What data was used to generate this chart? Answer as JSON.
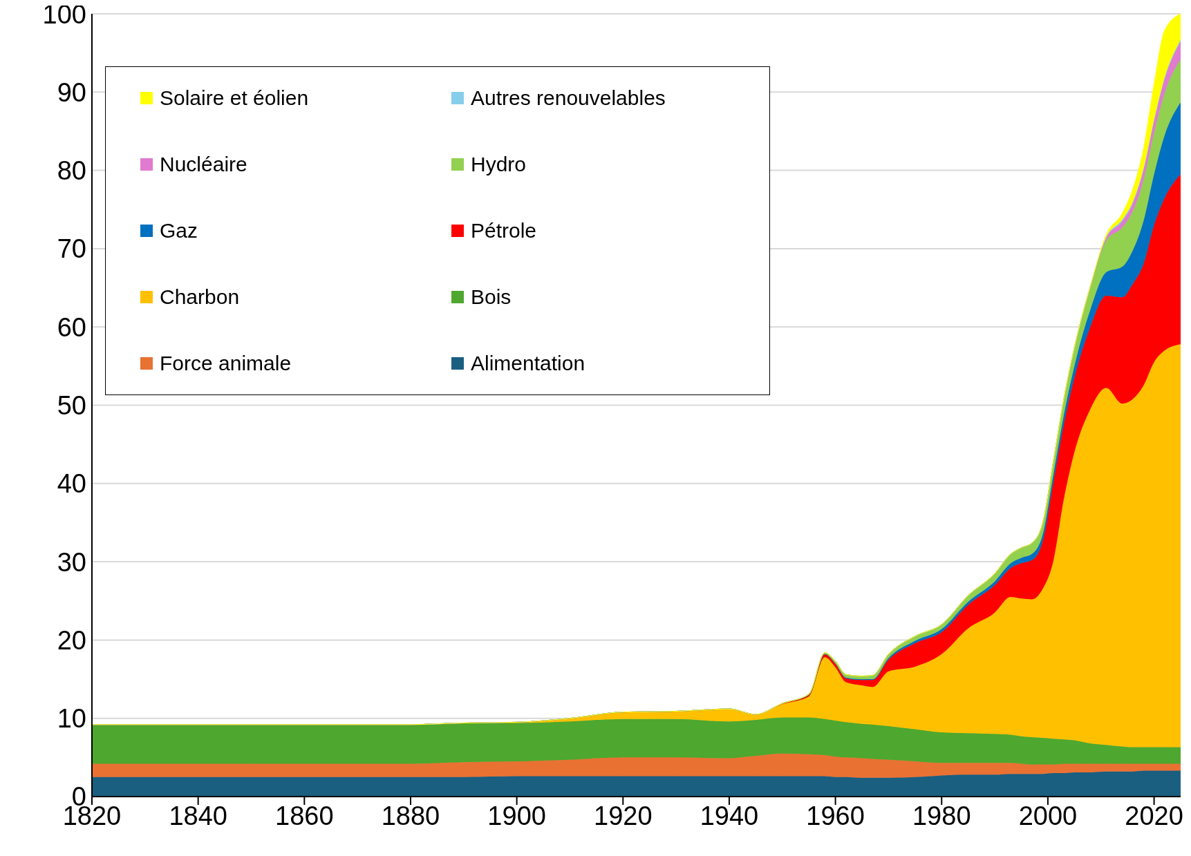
{
  "chart_data": {
    "type": "area",
    "stacked": true,
    "x": [
      1820,
      1850,
      1880,
      1890,
      1900,
      1910,
      1920,
      1930,
      1940,
      1945,
      1950,
      1955,
      1958,
      1960,
      1962,
      1965,
      1967,
      1970,
      1975,
      1980,
      1985,
      1990,
      1993,
      1995,
      1997,
      1999,
      2001,
      2003,
      2005,
      2008,
      2011,
      2014,
      2016,
      2018,
      2020,
      2022,
      2025
    ],
    "series": [
      {
        "name": "Alimentation",
        "color": "#1a5e80",
        "values": [
          2.5,
          2.5,
          2.5,
          2.5,
          2.6,
          2.6,
          2.6,
          2.6,
          2.6,
          2.6,
          2.6,
          2.6,
          2.6,
          2.5,
          2.5,
          2.4,
          2.4,
          2.4,
          2.5,
          2.7,
          2.8,
          2.8,
          2.9,
          2.9,
          2.9,
          2.9,
          3.0,
          3.0,
          3.1,
          3.1,
          3.2,
          3.2,
          3.2,
          3.3,
          3.3,
          3.3,
          3.3
        ]
      },
      {
        "name": "Force animale",
        "color": "#e97132",
        "values": [
          1.7,
          1.7,
          1.7,
          1.9,
          1.9,
          2.1,
          2.4,
          2.4,
          2.3,
          2.6,
          2.9,
          2.8,
          2.7,
          2.6,
          2.5,
          2.5,
          2.4,
          2.3,
          2.0,
          1.6,
          1.5,
          1.5,
          1.4,
          1.3,
          1.2,
          1.2,
          1.1,
          1.2,
          1.1,
          1.1,
          1.0,
          1.0,
          1.0,
          0.9,
          0.9,
          0.9,
          0.9
        ]
      },
      {
        "name": "Bois",
        "color": "#4ea72e",
        "values": [
          5.0,
          5.0,
          5.0,
          5.0,
          4.9,
          4.9,
          4.9,
          4.9,
          4.7,
          4.6,
          4.6,
          4.7,
          4.6,
          4.6,
          4.5,
          4.4,
          4.4,
          4.3,
          4.1,
          3.9,
          3.8,
          3.7,
          3.6,
          3.5,
          3.5,
          3.4,
          3.3,
          3.1,
          3.0,
          2.6,
          2.4,
          2.2,
          2.1,
          2.1,
          2.1,
          2.1,
          2.1
        ]
      },
      {
        "name": "Charbon",
        "color": "#ffc000",
        "values": [
          0,
          0,
          0,
          0,
          0.1,
          0.4,
          0.9,
          1.0,
          1.6,
          0.7,
          1.7,
          2.7,
          7.9,
          6.8,
          5.1,
          4.9,
          4.8,
          7.0,
          8.0,
          10.0,
          13.4,
          15.5,
          17.6,
          17.6,
          17.6,
          19.0,
          22.6,
          30.7,
          36.8,
          42.7,
          45.6,
          43.8,
          44.5,
          46.2,
          49.2,
          50.7,
          51.5
        ]
      },
      {
        "name": "Pétrole",
        "color": "#ff0000",
        "values": [
          0,
          0,
          0,
          0,
          0,
          0,
          0,
          0,
          0,
          0,
          0.1,
          0.2,
          0.4,
          0.5,
          0.5,
          0.7,
          0.9,
          1.5,
          3.0,
          2.8,
          3.0,
          3.5,
          3.7,
          4.5,
          5.0,
          6.0,
          10.0,
          9.5,
          9.5,
          10.5,
          11.8,
          13.6,
          14.7,
          15.5,
          17.5,
          19.5,
          21.7
        ]
      },
      {
        "name": "Gaz",
        "color": "#0070c0",
        "values": [
          0,
          0,
          0,
          0,
          0,
          0,
          0,
          0,
          0,
          0,
          0,
          0,
          0,
          0,
          0.1,
          0.1,
          0.1,
          0.2,
          0.3,
          0.4,
          0.4,
          0.5,
          0.6,
          0.7,
          0.8,
          0.9,
          1.0,
          1.2,
          1.5,
          2.2,
          3.0,
          3.9,
          4.3,
          5.5,
          6.5,
          8.0,
          9.2
        ]
      },
      {
        "name": "Hydro",
        "color": "#92d050",
        "values": [
          0,
          0,
          0,
          0,
          0,
          0,
          0,
          0,
          0,
          0,
          0,
          0.1,
          0.2,
          0.3,
          0.4,
          0.4,
          0.5,
          0.5,
          0.6,
          0.6,
          0.8,
          1.0,
          1.2,
          1.3,
          1.4,
          1.5,
          1.7,
          2.0,
          2.3,
          2.8,
          4.0,
          5.0,
          5.0,
          5.2,
          5.3,
          5.4,
          5.5
        ]
      },
      {
        "name": "Nucléaire",
        "color": "#e07bd0",
        "values": [
          0,
          0,
          0,
          0,
          0,
          0,
          0,
          0,
          0,
          0,
          0,
          0,
          0,
          0,
          0,
          0,
          0,
          0,
          0,
          0,
          0,
          0,
          0,
          0,
          0,
          0,
          0,
          0.1,
          0.1,
          0.2,
          0.4,
          0.8,
          1.0,
          1.3,
          1.5,
          1.8,
          2.3
        ]
      },
      {
        "name": "Autres renouvelables",
        "color": "#87ceeb",
        "values": [
          0,
          0,
          0,
          0,
          0,
          0,
          0,
          0,
          0,
          0,
          0,
          0,
          0,
          0,
          0,
          0,
          0,
          0,
          0,
          0,
          0,
          0,
          0,
          0,
          0,
          0,
          0,
          0,
          0,
          0,
          0.1,
          0.2,
          0.2,
          0.2,
          0.2,
          0.2,
          0.2
        ]
      },
      {
        "name": "Solaire et éolien",
        "color": "#ffff00",
        "values": [
          0,
          0,
          0,
          0,
          0,
          0,
          0,
          0,
          0,
          0,
          0,
          0,
          0,
          0,
          0,
          0,
          0,
          0,
          0,
          0,
          0,
          0,
          0,
          0,
          0,
          0,
          0,
          0,
          0,
          0,
          0.3,
          0.8,
          1.6,
          2.5,
          4.5,
          6.0,
          3.3
        ]
      }
    ],
    "xlim": [
      1820,
      2025
    ],
    "xticks": [
      1820,
      1840,
      1860,
      1880,
      1900,
      1920,
      1940,
      1960,
      1980,
      2000,
      2020
    ],
    "ylim": [
      0,
      100
    ],
    "yticks": [
      0,
      10,
      20,
      30,
      40,
      50,
      60,
      70,
      80,
      90,
      100
    ],
    "grid": "y",
    "legend": "top left"
  }
}
